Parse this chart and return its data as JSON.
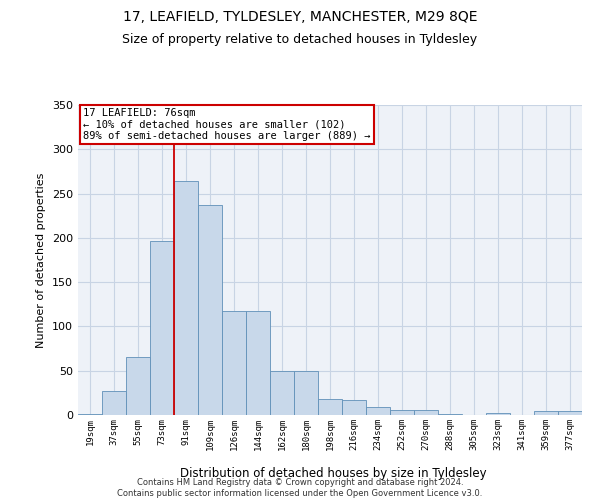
{
  "title1": "17, LEAFIELD, TYLDESLEY, MANCHESTER, M29 8QE",
  "title2": "Size of property relative to detached houses in Tyldesley",
  "xlabel": "Distribution of detached houses by size in Tyldesley",
  "ylabel": "Number of detached properties",
  "categories": [
    "19sqm",
    "37sqm",
    "55sqm",
    "73sqm",
    "91sqm",
    "109sqm",
    "126sqm",
    "144sqm",
    "162sqm",
    "180sqm",
    "198sqm",
    "216sqm",
    "234sqm",
    "252sqm",
    "270sqm",
    "288sqm",
    "305sqm",
    "323sqm",
    "341sqm",
    "359sqm",
    "377sqm"
  ],
  "values": [
    1,
    27,
    66,
    197,
    264,
    237,
    117,
    117,
    50,
    50,
    18,
    17,
    9,
    6,
    6,
    1,
    0,
    2,
    0,
    5,
    4
  ],
  "bar_color": "#c8d8ea",
  "bar_edge_color": "#6090b8",
  "grid_color": "#c8d4e4",
  "bg_color": "#eef2f8",
  "vline_color": "#cc0000",
  "vline_index": 4,
  "annotation_text": "17 LEAFIELD: 76sqm\n← 10% of detached houses are smaller (102)\n89% of semi-detached houses are larger (889) →",
  "annotation_box_color": "#ffffff",
  "annotation_box_edge": "#cc0000",
  "footer": "Contains HM Land Registry data © Crown copyright and database right 2024.\nContains public sector information licensed under the Open Government Licence v3.0.",
  "ylim": [
    0,
    350
  ],
  "yticks": [
    0,
    50,
    100,
    150,
    200,
    250,
    300,
    350
  ]
}
